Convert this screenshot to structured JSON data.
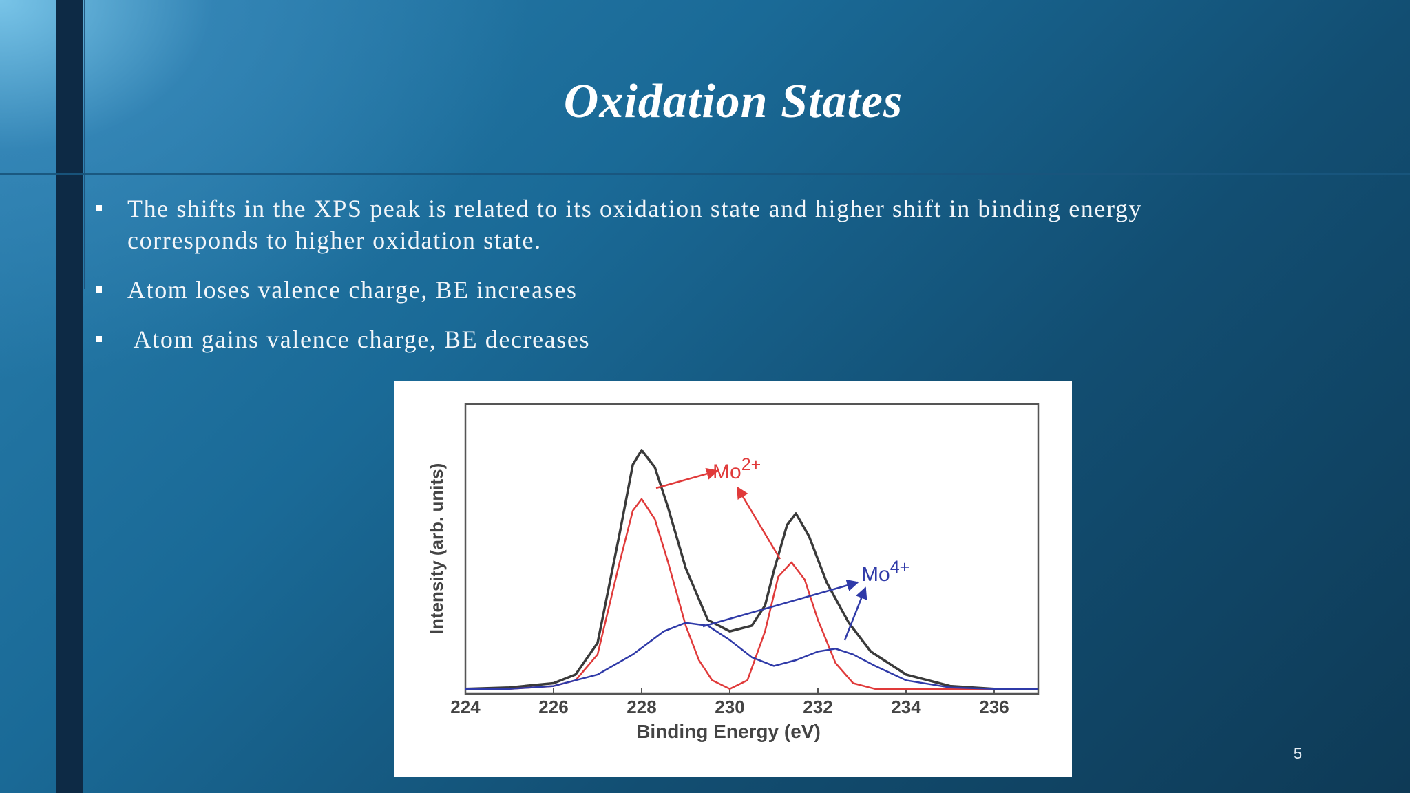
{
  "slide": {
    "title": "Oxidation States",
    "bullets": [
      "The shifts in the XPS peak is related to its oxidation state and higher shift in binding energy corresponds to higher oxidation state.",
      "Atom loses valence charge, BE increases",
      " Atom gains valence charge, BE decreases"
    ],
    "page_number": "5"
  },
  "chart_data": {
    "type": "line",
    "xlabel": "Binding Energy (eV)",
    "ylabel": "Intensity (arb. units)",
    "xlim": [
      224,
      237
    ],
    "x_ticks": [
      "224",
      "226",
      "228",
      "230",
      "232",
      "234",
      "236"
    ],
    "annotations": [
      {
        "base": "Mo",
        "sup": "2+",
        "color": "#e03a3a"
      },
      {
        "base": "Mo",
        "sup": "4+",
        "color": "#2f3aa8"
      }
    ],
    "series": [
      {
        "color": "#3a3a3a",
        "x": [
          224,
          225,
          226,
          226.5,
          227,
          227.5,
          227.8,
          228,
          228.3,
          228.6,
          229,
          229.5,
          230,
          230.5,
          230.8,
          231,
          231.3,
          231.5,
          231.8,
          232.2,
          232.7,
          233.2,
          234,
          235,
          236,
          237
        ],
        "y": [
          1,
          1.5,
          3,
          6,
          17,
          55,
          79,
          84,
          78,
          64,
          43,
          25,
          21,
          23,
          30,
          42,
          58,
          62,
          54,
          38,
          24,
          14,
          6,
          2,
          1,
          1
        ]
      },
      {
        "color": "#e03a3a",
        "x": [
          224,
          225,
          226,
          226.5,
          227,
          227.5,
          227.8,
          228,
          228.3,
          228.6,
          229,
          229.3,
          229.6,
          230,
          230.4,
          230.8,
          231.1,
          231.4,
          231.7,
          232,
          232.4,
          232.8,
          233.3,
          234,
          235,
          236,
          237
        ],
        "y": [
          1,
          1,
          2,
          4,
          13,
          45,
          63,
          67,
          60,
          45,
          23,
          11,
          4,
          1,
          4,
          21,
          40,
          45,
          39,
          25,
          10,
          3,
          1,
          1,
          1,
          1,
          1
        ]
      },
      {
        "color": "#2f3aa8",
        "x": [
          224,
          225,
          226,
          227,
          227.8,
          228.5,
          229,
          229.5,
          230,
          230.5,
          231,
          231.5,
          232,
          232.4,
          232.8,
          233.3,
          234,
          235,
          236,
          237
        ],
        "y": [
          1,
          1,
          2,
          6,
          13,
          21,
          24,
          23,
          18,
          12,
          9,
          11,
          14,
          15,
          13,
          9,
          4,
          1.5,
          1,
          1
        ]
      }
    ]
  }
}
